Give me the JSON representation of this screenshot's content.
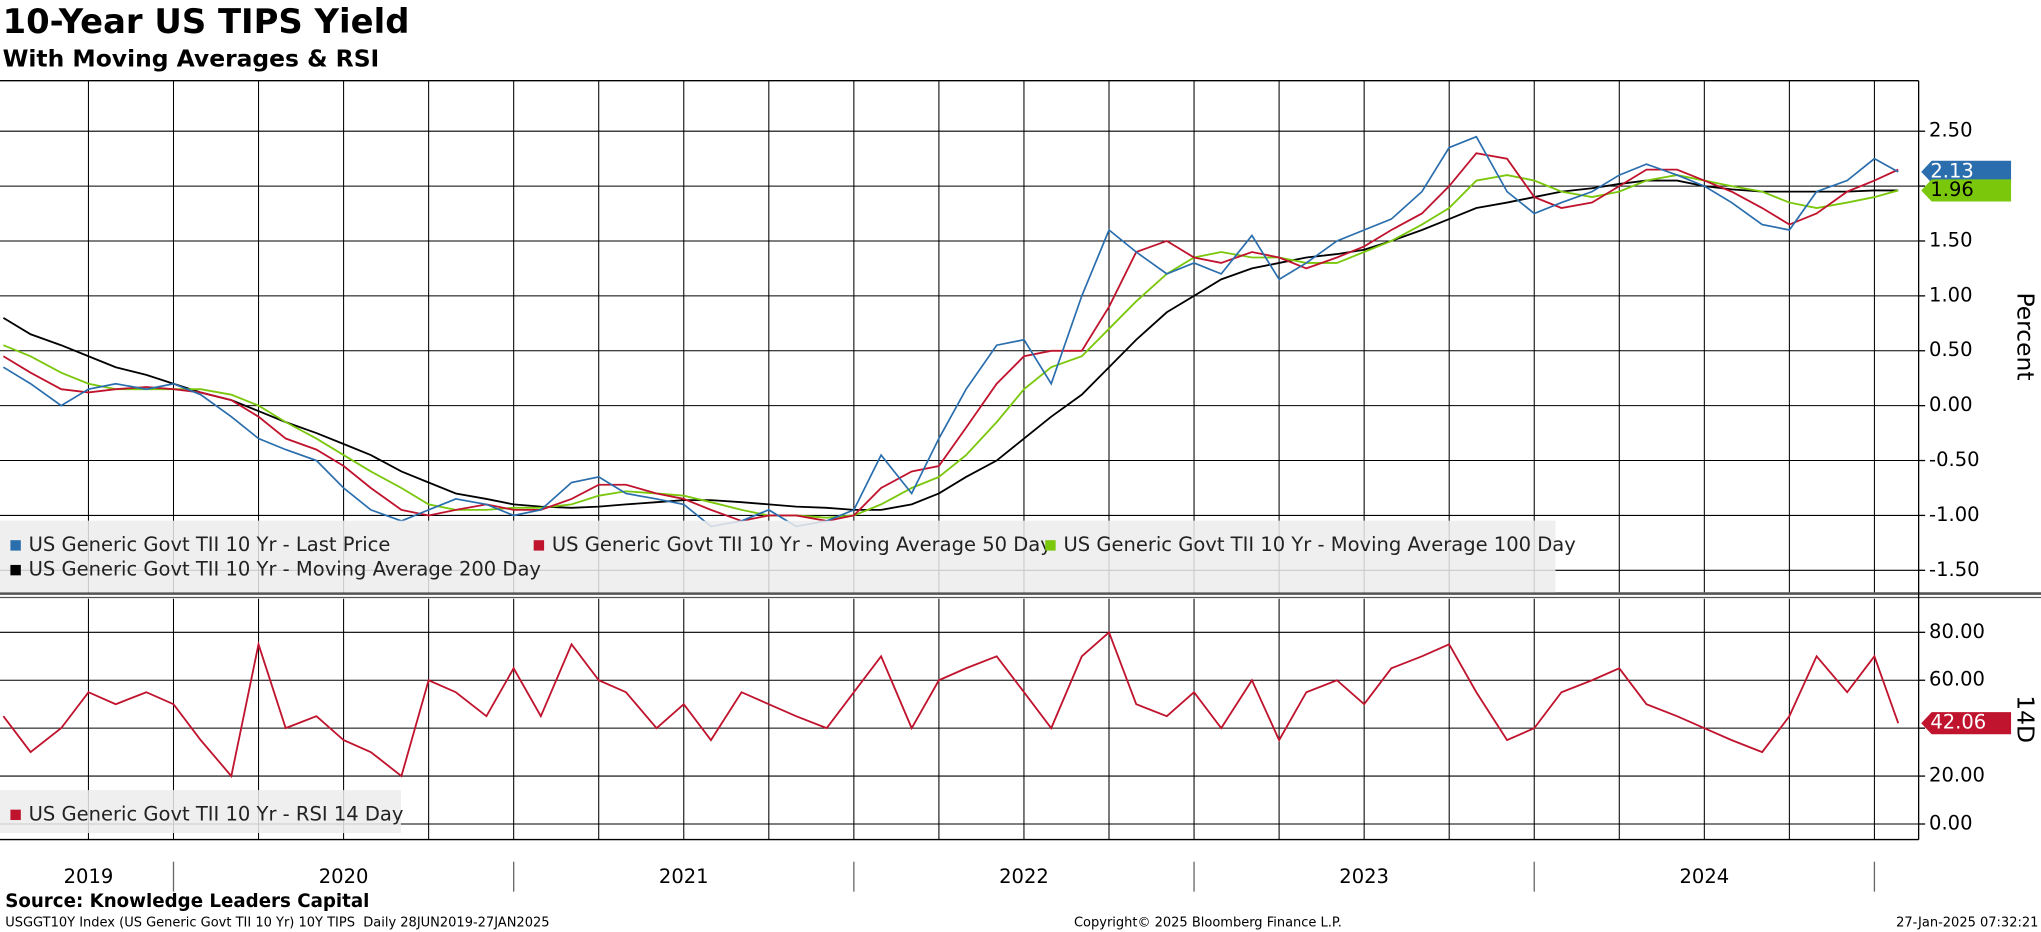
{
  "header": {
    "title": "10-Year US TIPS Yield",
    "subtitle": "With Moving Averages & RSI"
  },
  "footer": {
    "source": "Source: Knowledge Leaders Capital",
    "ticker": "USGGT10Y Index (US Generic Govt TII 10 Yr) 10Y TIPS  Daily 28JUN2019-27JAN2025",
    "copyright": "Copyright© 2025 Bloomberg Finance L.P.",
    "timestamp": "27-Jan-2025 07:32:21"
  },
  "chart_data": [
    {
      "type": "line",
      "ylabel": "Percent",
      "grid": true,
      "xlim": [
        2019.49,
        2025.13
      ],
      "xticks": [
        {
          "value": 2019.75,
          "label": "2019"
        },
        {
          "value": 2020.5,
          "label": "2020"
        },
        {
          "value": 2021.5,
          "label": "2021"
        },
        {
          "value": 2022.5,
          "label": "2022"
        },
        {
          "value": 2023.5,
          "label": "2023"
        },
        {
          "value": 2024.5,
          "label": "2024"
        }
      ],
      "x_gridlines": [
        2019.75,
        2020,
        2020.25,
        2020.5,
        2020.75,
        2021,
        2021.25,
        2021.5,
        2021.75,
        2022,
        2022.25,
        2022.5,
        2022.75,
        2023,
        2023.25,
        2023.5,
        2023.75,
        2024,
        2024.25,
        2024.5,
        2024.75,
        2025
      ],
      "ylim": [
        -1.7,
        2.96
      ],
      "yticks": [
        {
          "value": -1.5,
          "label": "-1.50"
        },
        {
          "value": -1,
          "label": "-1.00"
        },
        {
          "value": -0.5,
          "label": "-0.50"
        },
        {
          "value": 0,
          "label": "0.00"
        },
        {
          "value": 0.5,
          "label": "0.50"
        },
        {
          "value": 1,
          "label": "1.00"
        },
        {
          "value": 1.5,
          "label": "1.50"
        },
        {
          "value": 2,
          "label": "2.00"
        },
        {
          "value": 2.5,
          "label": "2.50"
        }
      ],
      "x": [
        2019.5,
        2019.58,
        2019.67,
        2019.75,
        2019.83,
        2019.92,
        2020,
        2020.08,
        2020.17,
        2020.25,
        2020.33,
        2020.42,
        2020.5,
        2020.58,
        2020.67,
        2020.75,
        2020.83,
        2020.92,
        2021,
        2021.08,
        2021.17,
        2021.25,
        2021.33,
        2021.42,
        2021.5,
        2021.58,
        2021.67,
        2021.75,
        2021.83,
        2021.92,
        2022,
        2022.08,
        2022.17,
        2022.25,
        2022.33,
        2022.42,
        2022.5,
        2022.58,
        2022.67,
        2022.75,
        2022.83,
        2022.92,
        2023,
        2023.08,
        2023.17,
        2023.25,
        2023.33,
        2023.42,
        2023.5,
        2023.58,
        2023.67,
        2023.75,
        2023.83,
        2023.92,
        2024,
        2024.08,
        2024.17,
        2024.25,
        2024.33,
        2024.42,
        2024.5,
        2024.58,
        2024.67,
        2024.75,
        2024.83,
        2024.92,
        2025,
        2025.07
      ],
      "series": [
        {
          "name": "US Generic Govt TII 10 Yr - Last Price",
          "color": "#2a6ead",
          "tag": "2.13",
          "values": [
            0.35,
            0.2,
            0.0,
            0.15,
            0.2,
            0.15,
            0.2,
            0.1,
            -0.1,
            -0.3,
            -0.4,
            -0.5,
            -0.75,
            -0.95,
            -1.05,
            -0.95,
            -0.85,
            -0.9,
            -1.0,
            -0.95,
            -0.7,
            -0.65,
            -0.8,
            -0.85,
            -0.9,
            -1.1,
            -1.05,
            -0.95,
            -1.1,
            -1.05,
            -0.95,
            -0.45,
            -0.8,
            -0.3,
            0.15,
            0.55,
            0.6,
            0.2,
            1.0,
            1.6,
            1.4,
            1.2,
            1.3,
            1.2,
            1.55,
            1.15,
            1.3,
            1.5,
            1.6,
            1.7,
            1.95,
            2.35,
            2.45,
            1.95,
            1.75,
            1.85,
            1.95,
            2.1,
            2.2,
            2.1,
            2.0,
            1.85,
            1.65,
            1.6,
            1.95,
            2.05,
            2.25,
            2.13
          ]
        },
        {
          "name": "US Generic Govt TII 10 Yr - Moving Average 50 Day",
          "color": "#c0142e",
          "values": [
            0.45,
            0.3,
            0.15,
            0.12,
            0.15,
            0.17,
            0.15,
            0.12,
            0.05,
            -0.1,
            -0.3,
            -0.4,
            -0.55,
            -0.75,
            -0.95,
            -1.0,
            -0.95,
            -0.9,
            -0.95,
            -0.95,
            -0.85,
            -0.72,
            -0.72,
            -0.8,
            -0.85,
            -0.95,
            -1.05,
            -1.0,
            -1.0,
            -1.05,
            -1.0,
            -0.75,
            -0.6,
            -0.55,
            -0.2,
            0.2,
            0.45,
            0.5,
            0.5,
            0.9,
            1.4,
            1.5,
            1.35,
            1.3,
            1.4,
            1.35,
            1.25,
            1.35,
            1.45,
            1.6,
            1.75,
            2.0,
            2.3,
            2.25,
            1.9,
            1.8,
            1.85,
            2.0,
            2.15,
            2.15,
            2.05,
            1.95,
            1.8,
            1.65,
            1.75,
            1.95,
            2.05,
            2.15
          ]
        },
        {
          "name": "US Generic Govt TII 10 Yr - Moving Average 100 Day",
          "color": "#7ac70c",
          "tag": "1.96",
          "values": [
            0.55,
            0.45,
            0.3,
            0.2,
            0.15,
            0.15,
            0.15,
            0.15,
            0.1,
            0.0,
            -0.15,
            -0.3,
            -0.45,
            -0.6,
            -0.75,
            -0.9,
            -0.95,
            -0.95,
            -0.93,
            -0.93,
            -0.9,
            -0.82,
            -0.78,
            -0.8,
            -0.82,
            -0.88,
            -0.95,
            -1.0,
            -1.0,
            -1.02,
            -1.0,
            -0.9,
            -0.75,
            -0.65,
            -0.45,
            -0.15,
            0.15,
            0.35,
            0.45,
            0.7,
            0.95,
            1.2,
            1.35,
            1.4,
            1.35,
            1.35,
            1.3,
            1.3,
            1.4,
            1.5,
            1.65,
            1.8,
            2.05,
            2.1,
            2.05,
            1.95,
            1.9,
            1.95,
            2.05,
            2.1,
            2.05,
            2.0,
            1.95,
            1.85,
            1.8,
            1.85,
            1.9,
            1.96
          ]
        },
        {
          "name": "US Generic Govt TII 10 Yr - Moving Average 200 Day",
          "color": "#000000",
          "values": [
            0.8,
            0.65,
            0.55,
            0.45,
            0.35,
            0.28,
            0.2,
            0.12,
            0.05,
            -0.05,
            -0.15,
            -0.25,
            -0.35,
            -0.45,
            -0.6,
            -0.7,
            -0.8,
            -0.85,
            -0.9,
            -0.92,
            -0.93,
            -0.92,
            -0.9,
            -0.88,
            -0.86,
            -0.86,
            -0.88,
            -0.9,
            -0.92,
            -0.93,
            -0.95,
            -0.95,
            -0.9,
            -0.8,
            -0.65,
            -0.5,
            -0.3,
            -0.1,
            0.1,
            0.35,
            0.6,
            0.85,
            1.0,
            1.15,
            1.25,
            1.3,
            1.35,
            1.38,
            1.42,
            1.5,
            1.6,
            1.7,
            1.8,
            1.85,
            1.9,
            1.95,
            1.98,
            2.02,
            2.05,
            2.05,
            2.0,
            1.97,
            1.95,
            1.95,
            1.95,
            1.95,
            1.96,
            1.96
          ]
        }
      ]
    },
    {
      "type": "line",
      "ylabel": "14D",
      "grid": true,
      "xlim": [
        2019.49,
        2025.13
      ],
      "x_gridlines": [
        2019.75,
        2020,
        2020.25,
        2020.5,
        2020.75,
        2021,
        2021.25,
        2021.5,
        2021.75,
        2022,
        2022.25,
        2022.5,
        2022.75,
        2023,
        2023.25,
        2023.5,
        2023.75,
        2024,
        2024.25,
        2024.5,
        2024.75,
        2025
      ],
      "ylim": [
        -6.5,
        94
      ],
      "yticks": [
        {
          "value": 0,
          "label": "0.00"
        },
        {
          "value": 20,
          "label": "20.00"
        },
        {
          "value": 40,
          "label": "40.00"
        },
        {
          "value": 60,
          "label": "60.00"
        },
        {
          "value": 80,
          "label": "80.00"
        }
      ],
      "x": [
        2019.5,
        2019.58,
        2019.67,
        2019.75,
        2019.83,
        2019.92,
        2020,
        2020.08,
        2020.17,
        2020.25,
        2020.33,
        2020.42,
        2020.5,
        2020.58,
        2020.67,
        2020.75,
        2020.83,
        2020.92,
        2021,
        2021.08,
        2021.17,
        2021.25,
        2021.33,
        2021.42,
        2021.5,
        2021.58,
        2021.67,
        2021.75,
        2021.83,
        2021.92,
        2022,
        2022.08,
        2022.17,
        2022.25,
        2022.33,
        2022.42,
        2022.5,
        2022.58,
        2022.67,
        2022.75,
        2022.83,
        2022.92,
        2023,
        2023.08,
        2023.17,
        2023.25,
        2023.33,
        2023.42,
        2023.5,
        2023.58,
        2023.67,
        2023.75,
        2023.83,
        2023.92,
        2024,
        2024.08,
        2024.17,
        2024.25,
        2024.33,
        2024.42,
        2024.5,
        2024.58,
        2024.67,
        2024.75,
        2024.83,
        2024.92,
        2025,
        2025.07
      ],
      "series": [
        {
          "name": "US Generic Govt TII 10 Yr - RSI 14 Day",
          "color": "#c0142e",
          "tag": "42.06",
          "values": [
            45,
            30,
            40,
            55,
            50,
            55,
            50,
            35,
            20,
            75,
            40,
            45,
            35,
            30,
            20,
            60,
            55,
            45,
            65,
            45,
            75,
            60,
            55,
            40,
            50,
            35,
            55,
            50,
            45,
            40,
            55,
            70,
            40,
            60,
            65,
            70,
            55,
            40,
            70,
            80,
            50,
            45,
            55,
            40,
            60,
            35,
            55,
            60,
            50,
            65,
            70,
            75,
            55,
            35,
            40,
            55,
            60,
            65,
            50,
            45,
            40,
            35,
            30,
            45,
            70,
            55,
            70,
            42.06
          ]
        }
      ]
    }
  ]
}
